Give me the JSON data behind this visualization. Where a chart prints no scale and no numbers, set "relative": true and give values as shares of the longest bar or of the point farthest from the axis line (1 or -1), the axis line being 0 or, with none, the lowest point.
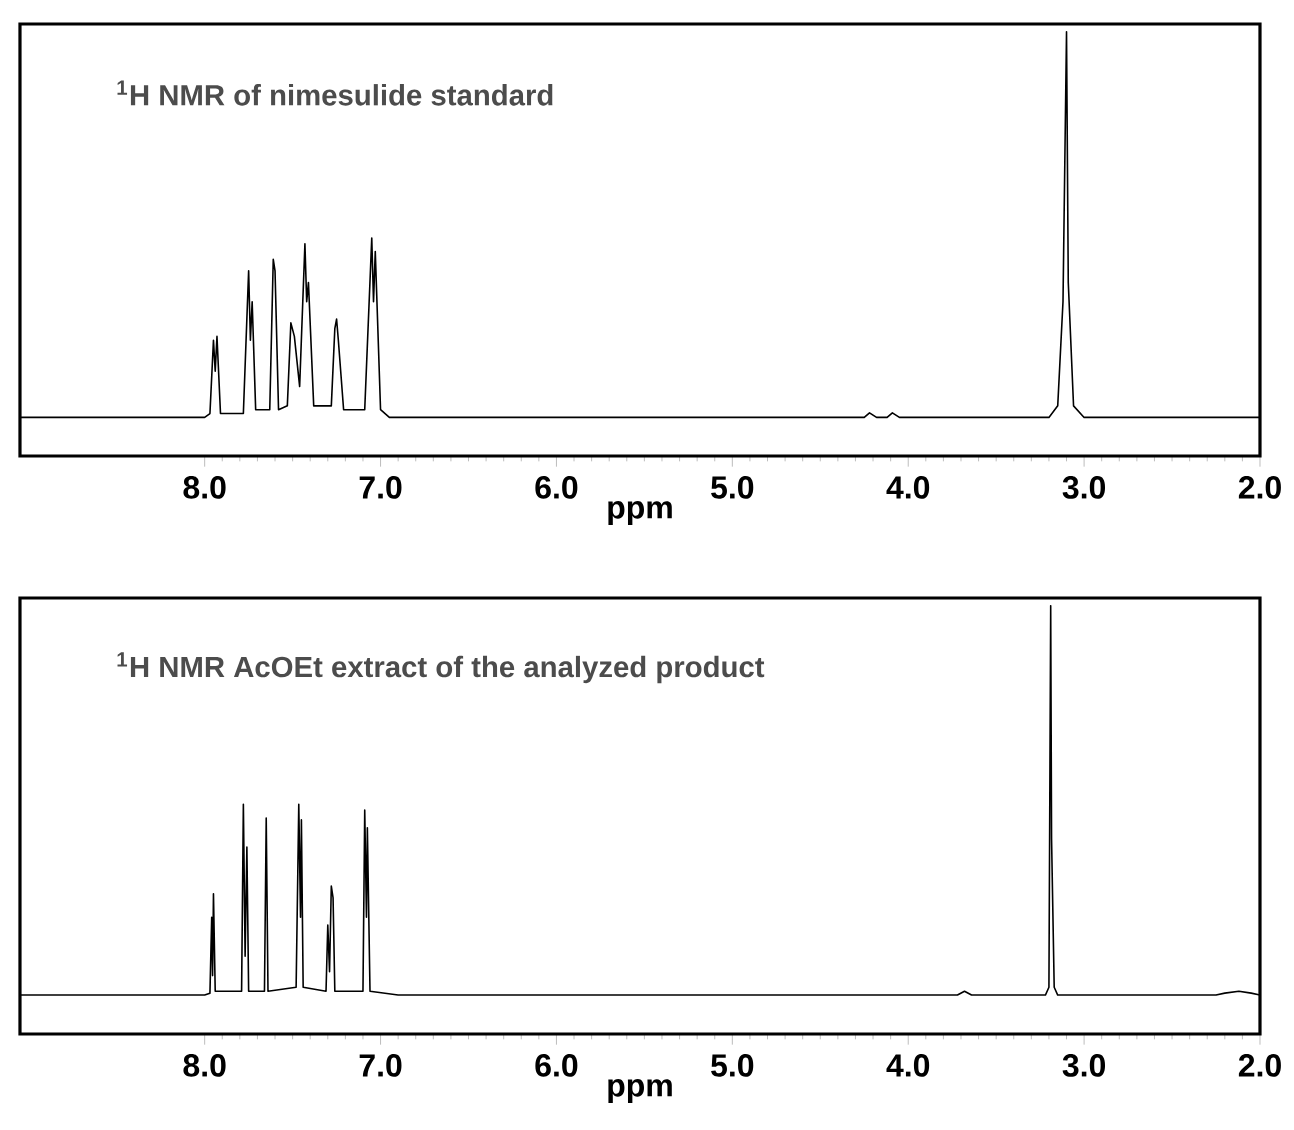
{
  "chart_data": [
    {
      "type": "line",
      "title": "$^{1}$H NMR  of nimesulide standard",
      "xlabel": "ppm",
      "relative": true,
      "xlim": [
        9.05,
        2.0
      ],
      "xticks": [
        {
          "value": 8,
          "label": "8.0"
        },
        {
          "value": 7,
          "label": "7.0"
        },
        {
          "value": 6,
          "label": "6.0"
        },
        {
          "value": 5,
          "label": "5.0"
        },
        {
          "value": 4,
          "label": "4.0"
        },
        {
          "value": 3,
          "label": "3.0"
        },
        {
          "value": 2,
          "label": "2.0"
        }
      ],
      "series": [
        {
          "color": "#000000",
          "x": [
            9.05,
            8.0,
            7.97,
            7.95,
            7.94,
            7.93,
            7.91,
            7.78,
            7.75,
            7.74,
            7.73,
            7.71,
            7.63,
            7.61,
            7.6,
            7.58,
            7.53,
            7.51,
            7.49,
            7.46,
            7.43,
            7.42,
            7.41,
            7.38,
            7.28,
            7.26,
            7.25,
            7.24,
            7.21,
            7.09,
            7.05,
            7.04,
            7.03,
            7.0,
            6.95,
            4.25,
            4.22,
            4.18,
            4.12,
            4.09,
            4.05,
            3.2,
            3.15,
            3.12,
            3.1,
            3.09,
            3.06,
            3.0,
            2.0
          ],
          "values": [
            0,
            0,
            0.01,
            0.2,
            0.12,
            0.21,
            0.01,
            0.01,
            0.38,
            0.2,
            0.3,
            0.02,
            0.02,
            0.41,
            0.38,
            0.02,
            0.03,
            0.245,
            0.21,
            0.08,
            0.45,
            0.3,
            0.35,
            0.03,
            0.03,
            0.23,
            0.255,
            0.2,
            0.02,
            0.02,
            0.465,
            0.3,
            0.43,
            0.02,
            0,
            0,
            0.012,
            0,
            0,
            0.012,
            0,
            0,
            0.03,
            0.3,
            1,
            0.35,
            0.03,
            0,
            0
          ]
        }
      ]
    },
    {
      "type": "line",
      "title": "$^{1}$H NMR  AcOEt extract of the analyzed  product",
      "xlabel": "ppm",
      "relative": true,
      "xlim": [
        9.05,
        2.0
      ],
      "xticks": [
        {
          "value": 8,
          "label": "8.0"
        },
        {
          "value": 7,
          "label": "7.0"
        },
        {
          "value": 6,
          "label": "6.0"
        },
        {
          "value": 5,
          "label": "5.0"
        },
        {
          "value": 4,
          "label": "4.0"
        },
        {
          "value": 3,
          "label": "3.0"
        },
        {
          "value": 2,
          "label": "2.0"
        }
      ],
      "series": [
        {
          "color": "#000000",
          "x": [
            9.05,
            8.0,
            7.97,
            7.96,
            7.955,
            7.95,
            7.94,
            7.79,
            7.78,
            7.77,
            7.76,
            7.75,
            7.66,
            7.65,
            7.64,
            7.48,
            7.47,
            7.465,
            7.455,
            7.45,
            7.44,
            7.31,
            7.3,
            7.29,
            7.28,
            7.27,
            7.26,
            7.1,
            7.09,
            7.08,
            7.075,
            7.06,
            6.9,
            3.72,
            3.68,
            3.64,
            3.22,
            3.2,
            3.19,
            3.185,
            3.17,
            3.15,
            2.25,
            2.2,
            2.12,
            2.05,
            2.0
          ],
          "values": [
            0,
            0,
            0.005,
            0.2,
            0.05,
            0.26,
            0.01,
            0.01,
            0.49,
            0.1,
            0.38,
            0.01,
            0.01,
            0.455,
            0.01,
            0.02,
            0.33,
            0.49,
            0.2,
            0.45,
            0.02,
            0.01,
            0.18,
            0.06,
            0.28,
            0.25,
            0.01,
            0.01,
            0.475,
            0.2,
            0.43,
            0.01,
            0,
            0,
            0.01,
            0,
            0,
            0.02,
            1,
            0.4,
            0.02,
            0,
            0,
            0.005,
            0.01,
            0.005,
            0
          ]
        }
      ]
    }
  ]
}
